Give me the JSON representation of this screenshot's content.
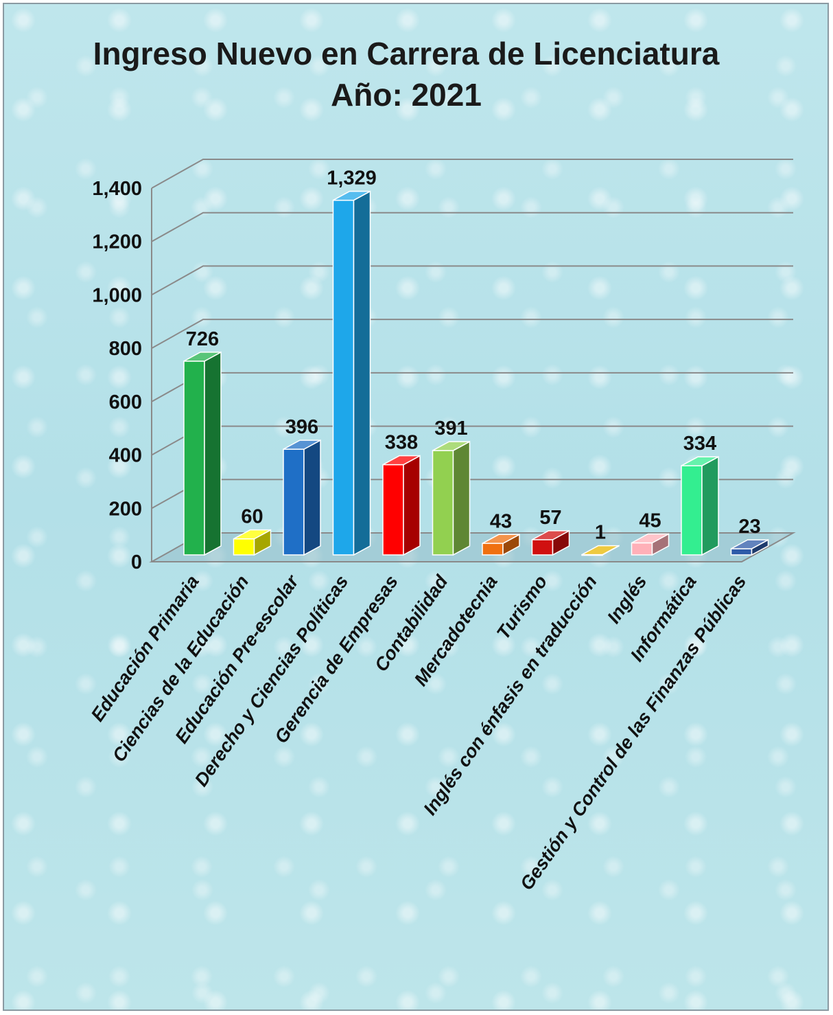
{
  "chart_data": {
    "type": "bar",
    "title": "Ingreso Nuevo en Carrera de Licenciatura",
    "subtitle": "Año: 2021",
    "xlabel": "",
    "ylabel": "",
    "ylim": [
      0,
      1400
    ],
    "yticks": [
      0,
      200,
      400,
      600,
      800,
      1000,
      1200,
      1400
    ],
    "ytick_labels": [
      "0",
      "200",
      "400",
      "600",
      "800",
      "1,000",
      "1,200",
      "1,400"
    ],
    "grid": true,
    "legend": "none",
    "categories": [
      "Educación Primaria",
      "Ciencias de la Educación",
      "Educación Pre-escolar",
      "Derecho y Ciencias Políticas",
      "Gerencia de Empresas",
      "Contabilidad",
      "Mercadotecnia",
      "Turismo",
      "Inglés con énfasis en traducción",
      "Inglés",
      "Informática",
      "Gestión y Control de las Finanzas Públicas"
    ],
    "values": [
      726,
      60,
      396,
      1329,
      338,
      391,
      43,
      57,
      1,
      45,
      334,
      23
    ],
    "value_labels": [
      "726",
      "60",
      "396",
      "1,329",
      "338",
      "391",
      "43",
      "57",
      "1",
      "45",
      "334",
      "23"
    ],
    "colors": [
      "#22b14c",
      "#ffff00",
      "#1f6fc6",
      "#1ea7ea",
      "#ff0000",
      "#92d050",
      "#f07010",
      "#d01010",
      "#e8b800",
      "#ffb0b8",
      "#33ee90",
      "#2e5aa8"
    ]
  }
}
